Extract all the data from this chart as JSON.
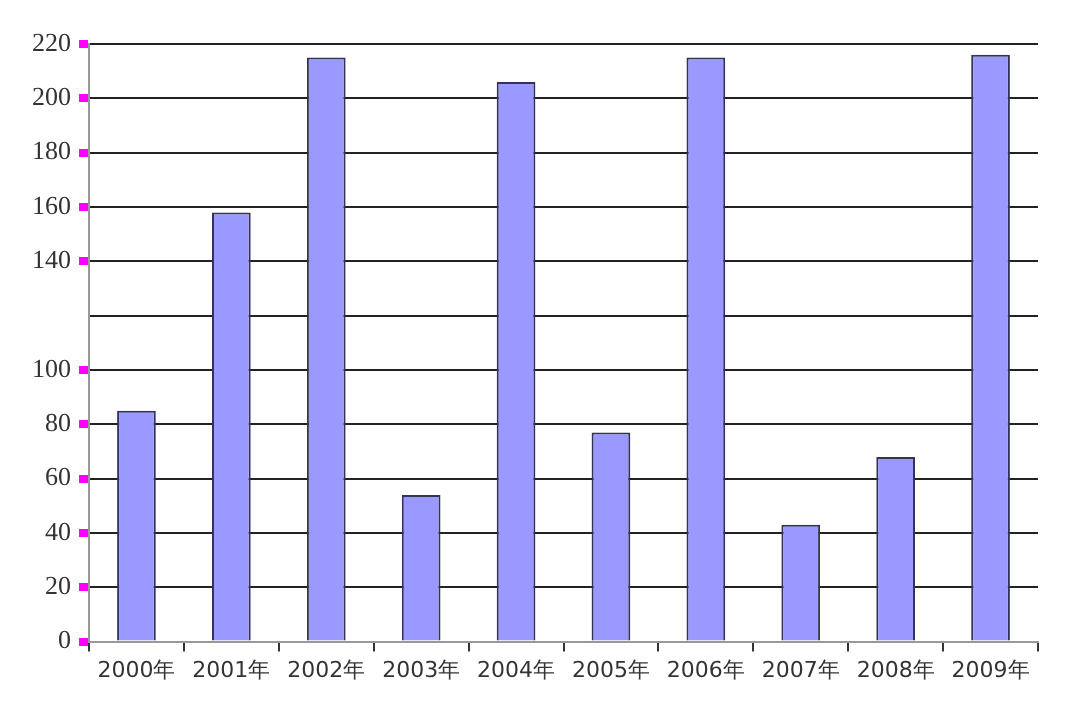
{
  "chart_data": {
    "type": "bar",
    "categories": [
      "2000年",
      "2001年",
      "2002年",
      "2003年",
      "2004年",
      "2005年",
      "2006年",
      "2007年",
      "2008年",
      "2009年"
    ],
    "values": [
      85,
      158,
      215,
      54,
      206,
      77,
      215,
      43,
      68,
      216
    ],
    "color": "#9999ff",
    "ylim": [
      0,
      220
    ],
    "yticks": [
      0,
      20,
      40,
      60,
      80,
      100,
      {
        "value": 120,
        "label": null
      },
      140,
      160,
      180,
      200,
      220
    ],
    "grid": "y",
    "legend": false
  }
}
